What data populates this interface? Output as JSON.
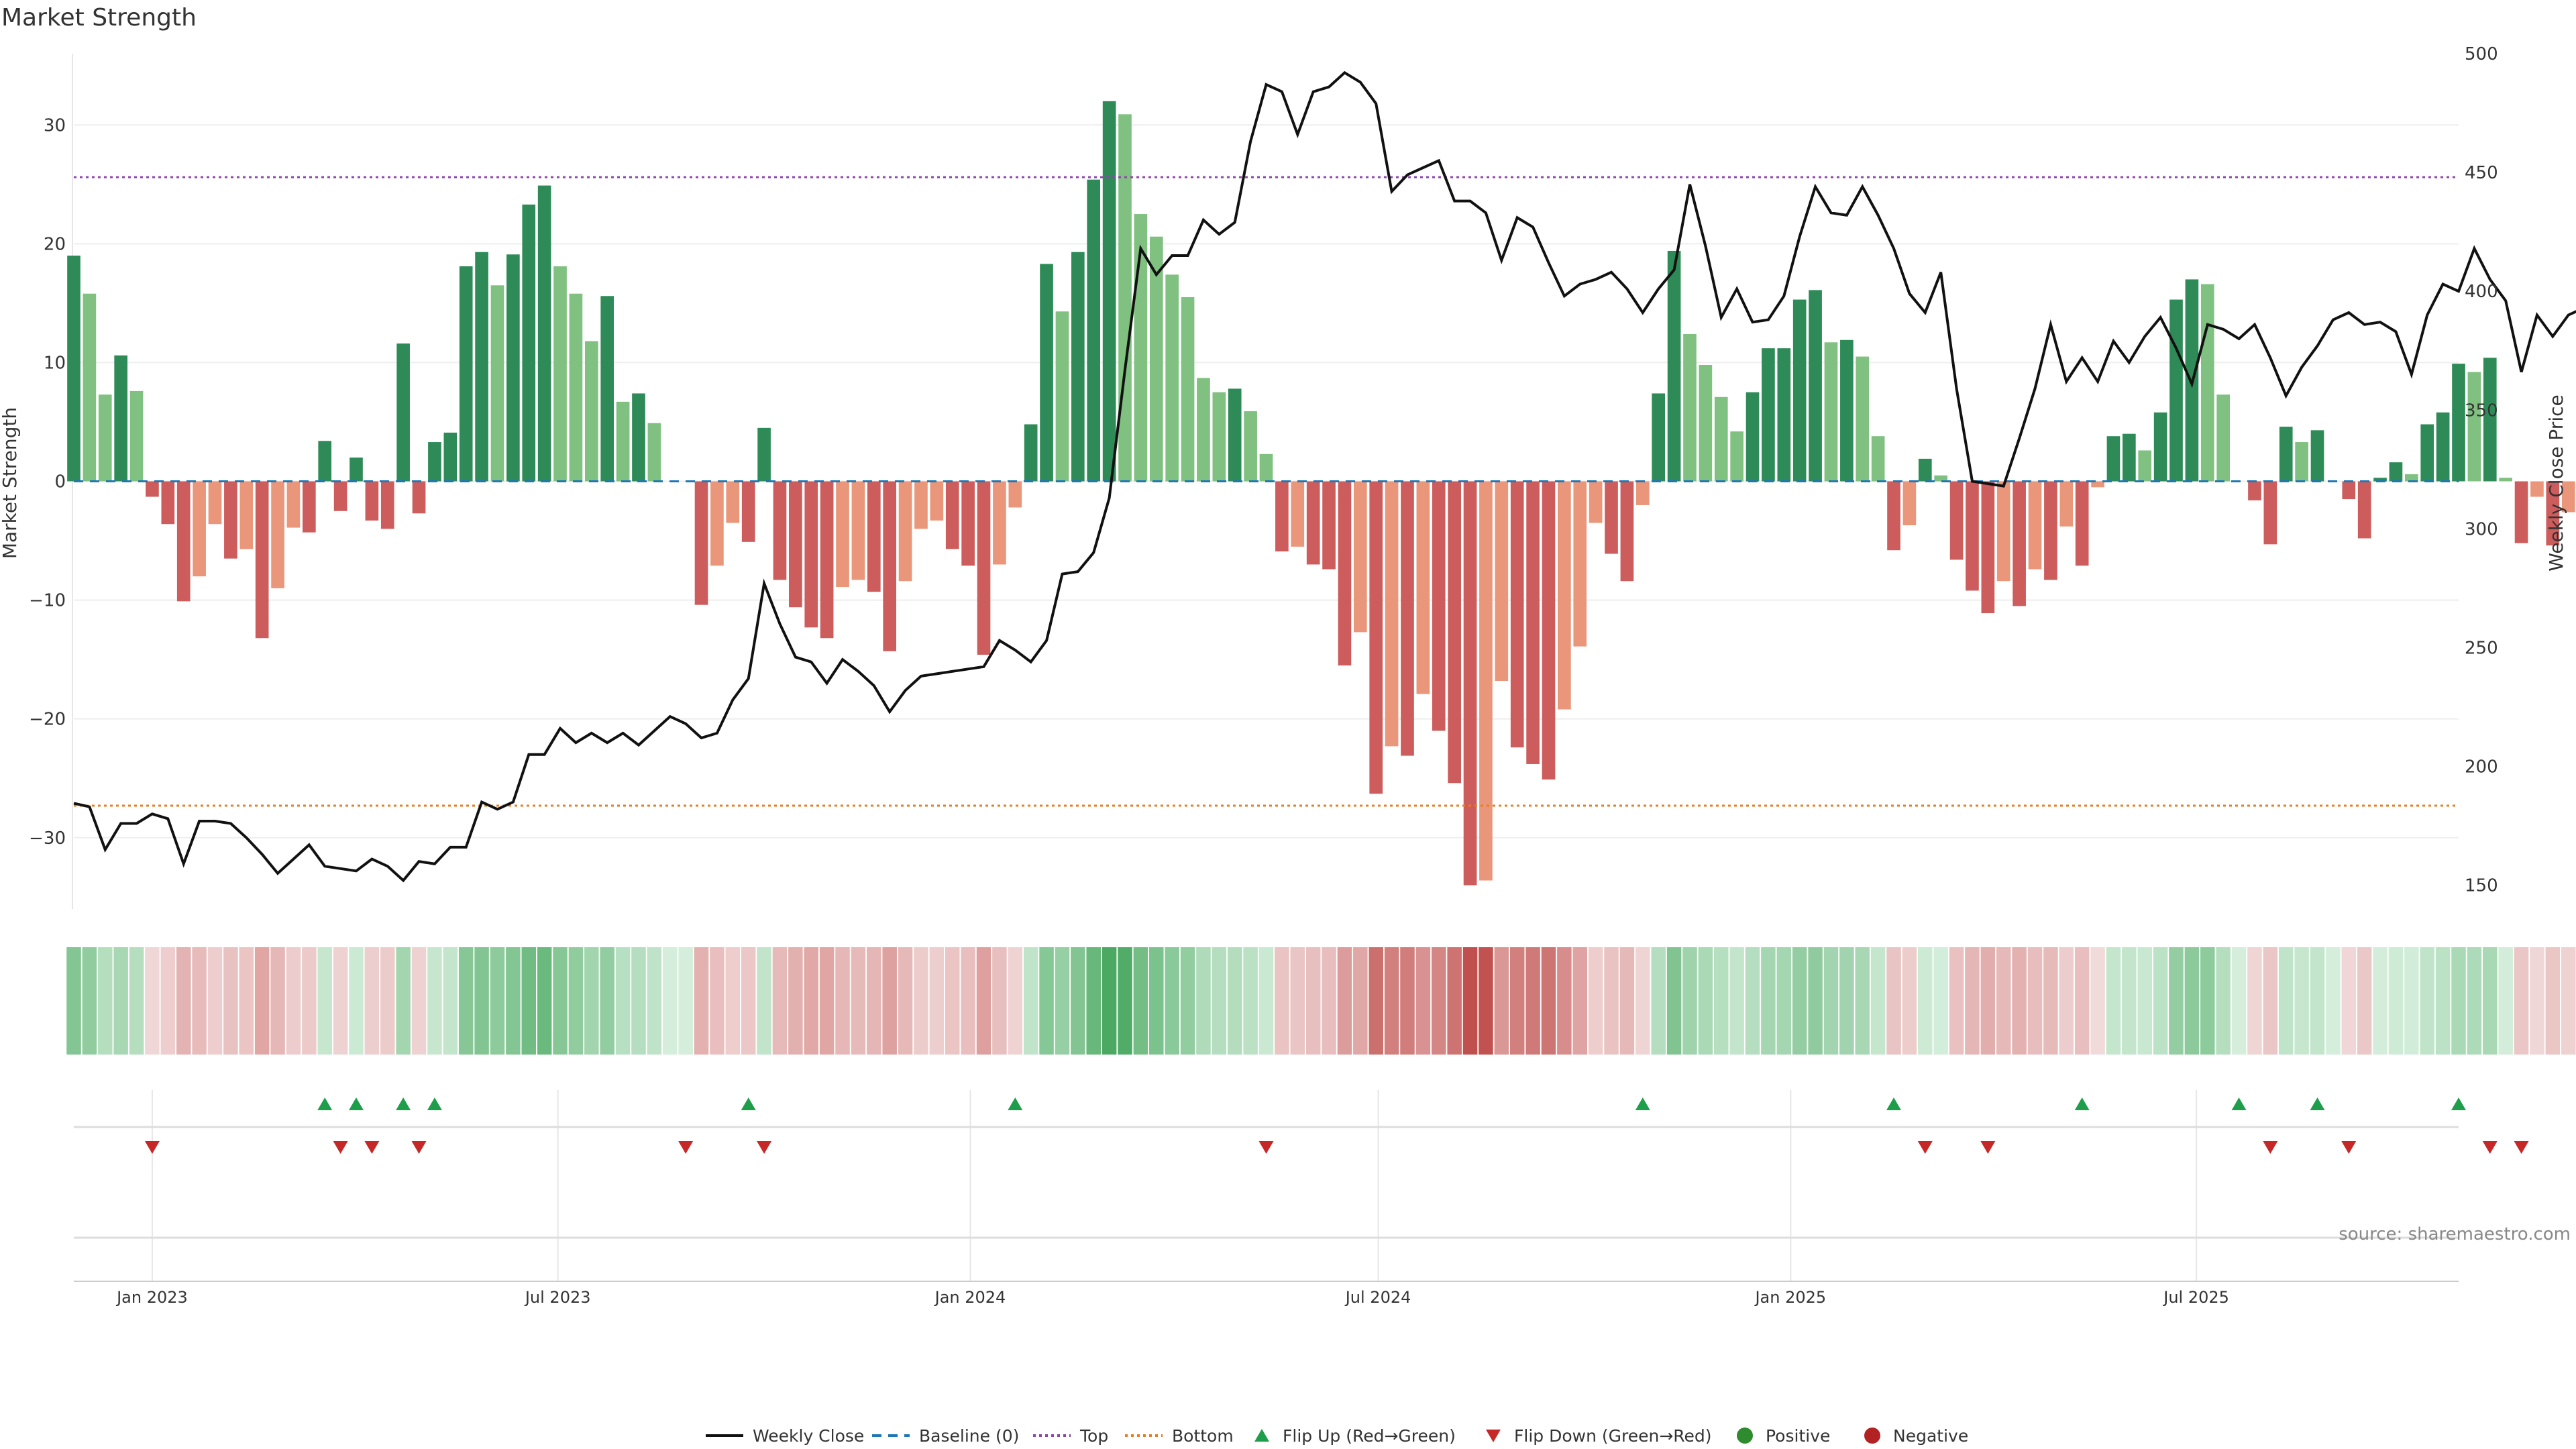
{
  "chart_data": {
    "type": "bar",
    "title": "Market Strength",
    "ylabel_left": "Market Strength",
    "ylabel_right": "Weekly Close Price",
    "ylim_left": [
      -36,
      36
    ],
    "ylim_right": [
      140,
      500
    ],
    "yticks_left": [
      "30",
      "20",
      "10",
      "0",
      "−10",
      "−20",
      "−30"
    ],
    "yticks_right": [
      "500",
      "450",
      "400",
      "350",
      "300",
      "250",
      "200",
      "150"
    ],
    "x_start": "2022-11-27",
    "x_end": "2025-10-26",
    "x_ticks": [
      {
        "date": "2023-01-01",
        "label": "Jan 2023"
      },
      {
        "date": "2023-07-01",
        "label": "Jul 2023"
      },
      {
        "date": "2024-01-01",
        "label": "Jan 2024"
      },
      {
        "date": "2024-07-01",
        "label": "Jul 2024"
      },
      {
        "date": "2025-01-01",
        "label": "Jan 2025"
      },
      {
        "date": "2025-07-01",
        "label": "Jul 2025"
      }
    ],
    "bar_start": "2022-11-27",
    "bar_period_days": 7,
    "strength": [
      19,
      15.8,
      7.3,
      10.6,
      7.6,
      -1.3,
      -3.6,
      -10.1,
      -8,
      -3.6,
      -6.5,
      -5.7,
      -13.2,
      -9,
      -3.9,
      -4.3,
      3.4,
      -2.5,
      2,
      -3.3,
      -4,
      11.6,
      -2.7,
      3.3,
      4.1,
      18.1,
      19.3,
      16.5,
      19.1,
      23.3,
      24.9,
      18.1,
      15.8,
      11.8,
      15.6,
      6.7,
      7.4,
      4.9,
      0,
      0,
      -10.4,
      -7.1,
      -3.5,
      -5.1,
      4.5,
      -8.3,
      -10.6,
      -12.3,
      -13.2,
      -8.9,
      -8.3,
      -9.3,
      -14.3,
      -8.4,
      -4,
      -3.3,
      -5.7,
      -7.1,
      -14.6,
      -7,
      -2.2,
      4.8,
      18.3,
      14.3,
      19.3,
      25.4,
      32,
      30.9,
      22.5,
      20.6,
      17.4,
      15.5,
      8.7,
      7.5,
      7.8,
      5.9,
      2.3,
      -5.9,
      -5.5,
      -7,
      -7.4,
      -15.5,
      -12.7,
      -26.3,
      -22.3,
      -23.1,
      -17.9,
      -21,
      -25.4,
      -34,
      -33.6,
      -16.8,
      -22.4,
      -23.8,
      -25.1,
      -19.2,
      -13.9,
      -3.5,
      -6.1,
      -8.4,
      -2,
      7.4,
      19.4,
      12.4,
      9.8,
      7.1,
      4.2,
      7.5,
      11.2,
      11.2,
      15.3,
      16.1,
      11.7,
      11.9,
      10.5,
      3.8,
      -5.8,
      -3.7,
      1.9,
      0.5,
      -6.6,
      -9.2,
      -11.1,
      -8.4,
      -10.5,
      -7.4,
      -8.3,
      -3.8,
      -7.1,
      -0.5,
      3.8,
      4,
      2.6,
      5.8,
      15.3,
      17,
      16.6,
      7.3,
      0,
      -1.6,
      -5.3,
      4.6,
      3.3,
      4.3,
      0,
      -1.5,
      -4.8,
      0.3,
      1.6,
      0.6,
      4.8,
      5.8,
      9.9,
      9.2,
      10.4,
      0.3,
      -5.2,
      -1.3,
      -5.4,
      -2.6
    ],
    "series": [
      {
        "name": "Weekly Close",
        "type": "line",
        "color": "#111111",
        "values": [
          184.5,
          183,
          165,
          176,
          176,
          180,
          178,
          159,
          177,
          177,
          176,
          170,
          163,
          155,
          161,
          167,
          158,
          157,
          156,
          161,
          158,
          152,
          160,
          159,
          166,
          166,
          185,
          182,
          185,
          205,
          205,
          216,
          210,
          214,
          210,
          214,
          209,
          215,
          221,
          218,
          212,
          214,
          228,
          237,
          277,
          260,
          246,
          244,
          235,
          245,
          240,
          234,
          223,
          232,
          238,
          239,
          240,
          241,
          242,
          253,
          249,
          244,
          253,
          281,
          282,
          290,
          313,
          367,
          418,
          407,
          415,
          415,
          430,
          424,
          429,
          463,
          487,
          484,
          466,
          484,
          486,
          492,
          488,
          479,
          442,
          449,
          452,
          455,
          438,
          438,
          433,
          413,
          431,
          427,
          412,
          398,
          403,
          405,
          408,
          401,
          391,
          401,
          409,
          445,
          419,
          389,
          401,
          387,
          388,
          398,
          423,
          444,
          433,
          432,
          444,
          432,
          418,
          399,
          391,
          408,
          359,
          320,
          319,
          318,
          338,
          359,
          386,
          362,
          372,
          362,
          379,
          370,
          381,
          389,
          376,
          361,
          386,
          384,
          380,
          386,
          372,
          356,
          368,
          377,
          388,
          391,
          386,
          387,
          383,
          365,
          390,
          403,
          400,
          418,
          405,
          396,
          366,
          390,
          381,
          390,
          393
        ]
      },
      {
        "name": "Baseline (0)",
        "type": "line",
        "color": "#1f77b4",
        "values": [
          0
        ]
      },
      {
        "name": "Top",
        "type": "line",
        "color": "#8e44ad",
        "values": [
          25.6
        ]
      },
      {
        "name": "Bottom",
        "type": "line",
        "color": "#e67e22",
        "values": [
          -27.3
        ]
      }
    ],
    "flip_up_weeks": [
      16,
      18,
      21,
      23,
      43,
      60,
      100,
      116,
      128,
      138,
      143,
      152
    ],
    "flip_down_weeks": [
      5,
      17,
      19,
      22,
      39,
      44,
      76,
      118,
      122,
      140,
      145,
      154,
      156
    ],
    "legend": [
      "Weekly Close",
      "Baseline (0)",
      "Top",
      "Bottom",
      "Flip Up (Red→Green)",
      "Flip Down (Green→Red)",
      "Positive",
      "Negative"
    ],
    "legend_position": "bottom-center",
    "annotation": "source: sharemaestro.com",
    "colors": {
      "positive_dark": "#2e8b57",
      "positive_light": "#80c080",
      "negative_dark": "#cd5c5c",
      "negative_light": "#e9967a",
      "flip_up": "#1e9e4a",
      "flip_down": "#c62828",
      "positive_dot": "#2e8b2e",
      "negative_dot": "#b22222"
    }
  }
}
